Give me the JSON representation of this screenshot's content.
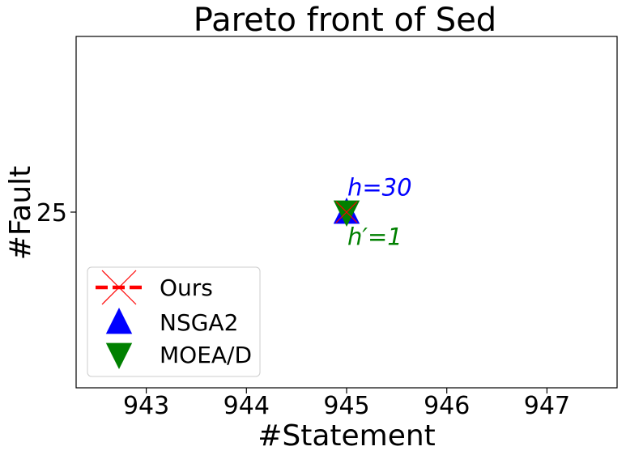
{
  "chart_data": {
    "type": "scatter",
    "title": "Pareto front of Sed",
    "xlabel": "#Statement",
    "ylabel": "#Fault",
    "xlim": [
      942.3,
      947.7
    ],
    "ylim": [
      20,
      30
    ],
    "x_ticks": [
      "943",
      "944",
      "945",
      "946",
      "947"
    ],
    "y_ticks": [
      "25"
    ],
    "grid": false,
    "legend_position": "lower-left",
    "series": [
      {
        "name": "Ours",
        "marker": "x-dashed-line",
        "color": "#ff0000",
        "points": [
          [
            945,
            25
          ]
        ]
      },
      {
        "name": "NSGA2",
        "marker": "triangle-up",
        "color": "#0000ff",
        "points": [
          [
            945,
            25
          ]
        ]
      },
      {
        "name": "MOEA/D",
        "marker": "triangle-down",
        "color": "#008000",
        "points": [
          [
            945,
            25
          ]
        ]
      }
    ],
    "annotations": [
      {
        "text": "h=30",
        "color": "#0000ff",
        "x": 945,
        "y": 25.7
      },
      {
        "text": "h′=1",
        "color": "#008000",
        "x": 945,
        "y": 24.3
      }
    ]
  }
}
